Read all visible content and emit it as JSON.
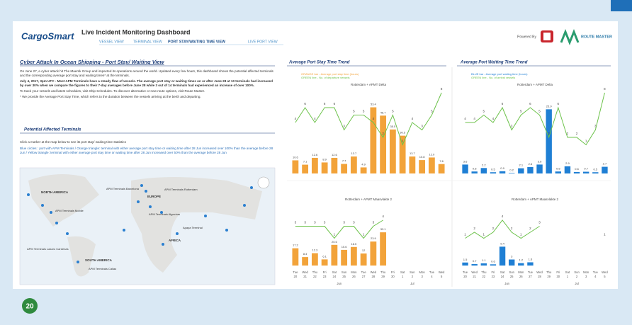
{
  "header": {
    "logo": "CargoSmart",
    "title": "Live Incident Monitoring Dashboard",
    "tabs": [
      "VESSEL VIEW",
      "TERMINAL VIEW",
      "PORT STAY/WAITING TIME VIEW",
      "LIVE PORT VIEW"
    ],
    "powered_by": "Powered By",
    "partner": "ROUTE MASTER"
  },
  "left_panel": {
    "title": "Cyber Attack In Ocean Shipping - Port Stay/ Waiting View",
    "paragraphs": [
      "On June 27, a cyber attack hit The Maersk Group and impacted its operations around the world. Updated every few hours, this dashboard shows the potential affected terminals and the corresponding average port stay and waiting times* at the terminals.",
      "July 4, 2017, 3pm UTC - Most APM Terminals have a steady flow of vessels. The average port stay or waiting times on or after June 28 at 10 terminals had increased by over 30% when we compare the figures to their 7-day averages before June 28 while 3 out of 14 terminals had experienced an increase of over 100%.",
      "To track your vessels and latest schedules, visit Ship Schedules. To discover alternative or new route options, visit Route Master.",
      "* We provide the Average Port Stay Time, which refers to the duration between the vessels arriving at the berth and departing."
    ],
    "section_title": "Potential Affected Terminals",
    "section_text": [
      "Click a marker at the map below to see its port stay/ waiting time statistics",
      "Blue circles : port with APM Terminals / Orange triangle: terminal with either average port stay time or waiting time after 28 Jun increased over 100% than the average before 28 Jun / Yellow triangle: terminal with either average port stay time or waiting time after 28 Jun increased over 50% than the average before 28 Jun"
    ],
    "map_regions": [
      "NORTH AMERICA",
      "EUROPE",
      "AFRICA",
      "SOUTH AMERICA"
    ],
    "map_terminals": [
      "APM Terminals Barcelona",
      "APM Terminals Rotterdam",
      "APM Terminals Algeciras",
      "APM Terminals Mobile",
      "APM Terminals Lazaro Cardenas",
      "Apapa Terminal",
      "APM Terminals Callao"
    ]
  },
  "panel_titles": [
    "Average Port Stay Time Trend",
    "Average Port Waiting Time Trend"
  ],
  "chart_data": [
    {
      "type": "bar-line",
      "subtitle": "Rotterdam + APMT Delta",
      "legend": [
        "ORANGE bar - Average port stay time (hours)",
        "GREEN line - No. of departure vessels"
      ],
      "series": [
        {
          "name": "Average port stay time (hours)",
          "color": "#f2a33a",
          "values": [
            10.6,
            7.1,
            12.6,
            8.9,
            12.6,
            7.7,
            13.7,
            4.9,
            53.4,
            46.7,
            35.5,
            30.5,
            13.7,
            10.8,
            12.9,
            7.6
          ]
        },
        {
          "name": "No. of departure vessels",
          "color": "#6cc24a",
          "axis": "y2",
          "values": [
            4,
            6,
            4,
            6,
            6,
            3,
            5,
            5,
            4,
            2,
            5,
            1,
            4,
            3,
            5,
            8
          ]
        }
      ],
      "ylim": [
        0,
        60
      ],
      "y2lim": [
        0,
        10
      ]
    },
    {
      "type": "bar-line",
      "subtitle": "Rotterdam + APMT Delta",
      "legend": [
        "BLUE bar - Average port waiting time (hours)",
        "GREEN line - No. of arrival vessels"
      ],
      "series": [
        {
          "name": "Average port waiting time (hours)",
          "color": "#1f7fd4",
          "values": [
            3.6,
            0.8,
            2.2,
            0.5,
            0.9,
            0.2,
            2.1,
            2.6,
            3.6,
            25.9,
            0.8,
            2.9,
            0.6,
            0.7,
            0.5,
            2.7
          ]
        },
        {
          "name": "No. of arrival vessels",
          "color": "#6cc24a",
          "axis": "y2",
          "values": [
            4,
            4,
            5,
            4,
            6,
            3,
            5,
            6,
            5,
            2,
            6,
            2,
            2,
            1,
            3,
            8
          ]
        }
      ],
      "ylim": [
        0,
        30
      ],
      "y2lim": [
        0,
        10
      ]
    },
    {
      "type": "bar-line",
      "subtitle": "Rotterdam + APMT Maasvlakte 2",
      "categories": [
        [
          "Tue",
          "20"
        ],
        [
          "Wed",
          "21"
        ],
        [
          "Thu",
          "22"
        ],
        [
          "Fri",
          "23"
        ],
        [
          "Sat",
          "24"
        ],
        [
          "Sun",
          "25"
        ],
        [
          "Mon",
          "26"
        ],
        [
          "Tue",
          "27"
        ],
        [
          "Wed",
          "28"
        ],
        [
          "Thu",
          "29"
        ],
        [
          "Fri",
          "30"
        ],
        [
          "Sat",
          "1"
        ],
        [
          "Sun",
          "2"
        ],
        [
          "Mon",
          "3"
        ],
        [
          "Tue",
          "4"
        ],
        [
          "Wed",
          "5"
        ]
      ],
      "months": [
        "Jun",
        "Jul"
      ],
      "series": [
        {
          "name": "Average port stay time (hours)",
          "color": "#f2a33a",
          "values": [
            17.2,
            8.4,
            12.3,
            6.1,
            20.6,
            15.6,
            18.5,
            12.0,
            23.9,
            33.1,
            null,
            null,
            null,
            null,
            null,
            null
          ]
        },
        {
          "name": "No. of departure vessels",
          "color": "#6cc24a",
          "axis": "y2",
          "values": [
            3,
            3,
            3,
            3,
            1,
            3,
            3,
            1,
            3,
            4,
            null,
            null,
            null,
            null,
            null,
            null
          ]
        }
      ],
      "ylim": [
        0,
        60
      ],
      "y2lim": [
        0,
        10
      ]
    },
    {
      "type": "bar-line",
      "subtitle": "Rotterdam + APMT Maasvlakte 2",
      "categories": [
        [
          "Tue",
          "20"
        ],
        [
          "Wed",
          "21"
        ],
        [
          "Thu",
          "22"
        ],
        [
          "Fri",
          "23"
        ],
        [
          "Sat",
          "24"
        ],
        [
          "Sun",
          "25"
        ],
        [
          "Mon",
          "26"
        ],
        [
          "Tue",
          "27"
        ],
        [
          "Wed",
          "28"
        ],
        [
          "Thu",
          "29"
        ],
        [
          "Fri",
          "30"
        ],
        [
          "Sat",
          "1"
        ],
        [
          "Sun",
          "2"
        ],
        [
          "Mon",
          "3"
        ],
        [
          "Tue",
          "4"
        ],
        [
          "Wed",
          "5"
        ]
      ],
      "months": [
        "Jun",
        "Jul"
      ],
      "series": [
        {
          "name": "Average port waiting time (hours)",
          "color": "#1f7fd4",
          "values": [
            1.5,
            0.7,
            1.1,
            0.6,
            9.4,
            3.0,
            1.2,
            1.6,
            null,
            null,
            null,
            null,
            null,
            null,
            null,
            null
          ]
        },
        {
          "name": "No. of arrival vessels",
          "color": "#6cc24a",
          "axis": "y2",
          "values": [
            1,
            2,
            1,
            2,
            4,
            2,
            1,
            2,
            3,
            null,
            null,
            null,
            null,
            null,
            null,
            1
          ]
        }
      ],
      "ylim": [
        0,
        30
      ],
      "y2lim": [
        0,
        10
      ]
    }
  ],
  "page_number": "20"
}
